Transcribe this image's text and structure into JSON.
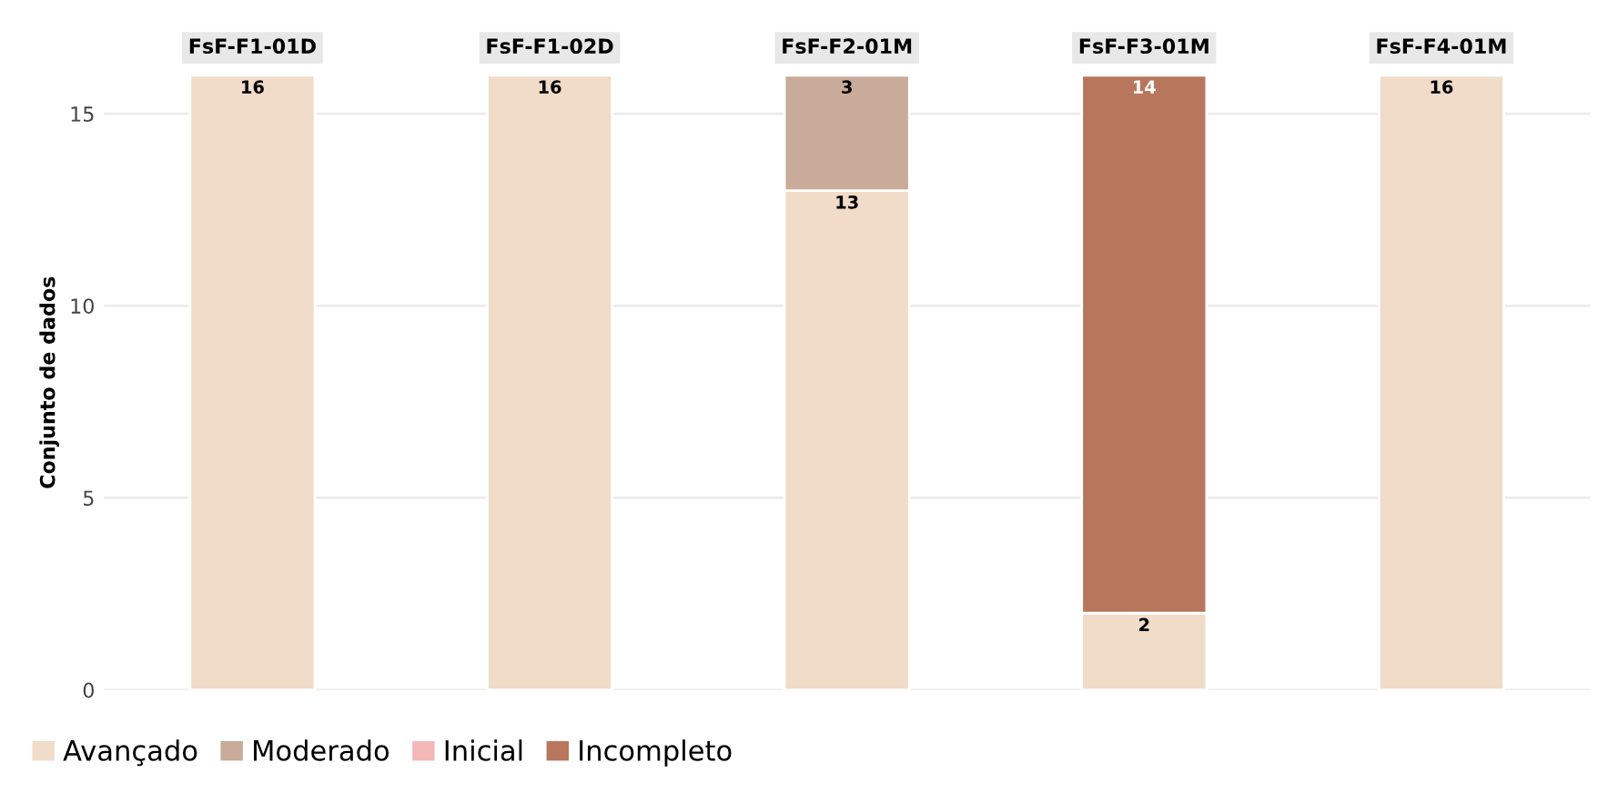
{
  "chart_data": {
    "type": "bar",
    "stacked": true,
    "ylabel": "Conjunto de dados",
    "categories": [
      "FsF-F1-01D",
      "FsF-F1-02D",
      "FsF-F2-01M",
      "FsF-F3-01M",
      "FsF-F4-01M"
    ],
    "ylim": [
      0,
      16
    ],
    "yticks": [
      0,
      5,
      10,
      15
    ],
    "grid": "y",
    "legend": "bottom",
    "series": [
      {
        "name": "Avançado",
        "color": "#f0dcc8",
        "values": [
          16,
          16,
          13,
          2,
          16
        ],
        "value_labels": [
          "16",
          "16",
          "13",
          "2",
          "16"
        ]
      },
      {
        "name": "Moderado",
        "color": "#c8ab98",
        "values": [
          null,
          null,
          3,
          null,
          null
        ],
        "value_labels": [
          null,
          null,
          "3",
          null,
          null
        ]
      },
      {
        "name": "Inicial",
        "color": "#f4b8b8",
        "values": [
          null,
          null,
          null,
          null,
          null
        ],
        "value_labels": [
          null,
          null,
          null,
          null,
          null
        ]
      },
      {
        "name": "Incompleto",
        "color": "#b8775c",
        "values": [
          null,
          null,
          null,
          14,
          null
        ],
        "value_labels": [
          null,
          null,
          null,
          "14",
          null
        ]
      }
    ]
  }
}
